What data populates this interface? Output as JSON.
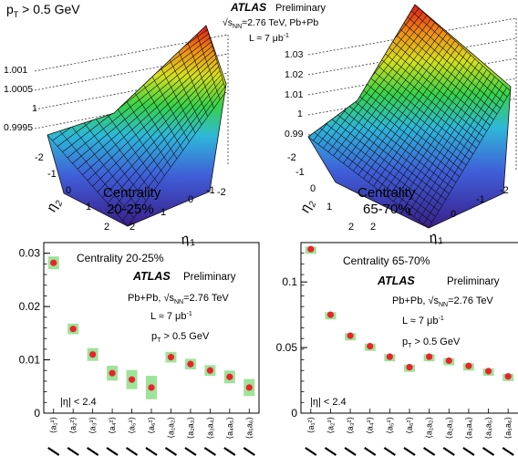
{
  "header": {
    "pt_cut": "p",
    "pt_sub": "T",
    "pt_rest": " > 0.5 GeV",
    "atlas": "ATLAS",
    "preliminary": "Preliminary",
    "energy_pre": "s",
    "energy_sub": "NN",
    "energy_rest": "=2.76 TeV, Pb+Pb",
    "lumi_pre": "L ≈ 7 μb",
    "lumi_sup": "-1"
  },
  "chart_data": [
    {
      "type": "surface",
      "panel": "top-left",
      "zlim": [
        0.999,
        1.0015
      ],
      "z_ticks": [
        "1.001",
        "1.0005",
        "1",
        "0.9995"
      ],
      "axis_ticks": [
        "-2",
        "-1",
        "0",
        "1",
        "2"
      ],
      "xlabel": "η",
      "xlabel_sub": "1",
      "ylabel": "η",
      "ylabel_sub": "2",
      "annotation_1": "Centrality",
      "annotation_2": "20-25%"
    },
    {
      "type": "surface",
      "panel": "top-right",
      "zlim": [
        0.985,
        1.035
      ],
      "z_ticks": [
        "1.03",
        "1.02",
        "1.01",
        "1",
        "0.99"
      ],
      "axis_ticks": [
        "-2",
        "-1",
        "0",
        "1",
        "2"
      ],
      "xlabel": "η",
      "xlabel_sub": "1",
      "ylabel": "η",
      "ylabel_sub": "2",
      "annotation_1": "Centrality",
      "annotation_2": "65-70%"
    },
    {
      "type": "scatter",
      "panel": "bottom-left",
      "title": "Centrality 20-25%",
      "atlas": "ATLAS",
      "preliminary": "Preliminary",
      "line1": "Pb+Pb, ",
      "line1_s": "s",
      "line1_sub": "NN",
      "line1_rest": "=2.76 TeV",
      "line2": "L ≈ 7 μb",
      "line2_sup": "-1",
      "line3": "p",
      "line3_sub": "T",
      "line3_rest": " > 0.5 GeV",
      "eta_cut": "|η| < 2.4",
      "ylim": [
        0,
        0.032
      ],
      "y_ticks": [
        "0",
        "0.01",
        "0.02",
        "0.03"
      ],
      "x_labels": [
        "⟨a₁²⟩",
        "⟨a₂²⟩",
        "⟨a₃²⟩",
        "⟨a₄²⟩",
        "⟨a₅²⟩",
        "⟨a₆²⟩",
        "⟨a₁a₂⟩",
        "⟨a₂a₃⟩",
        "⟨a₃a₄⟩",
        "⟨a₄a₅⟩",
        "⟨a₅a₆⟩"
      ],
      "values": [
        0.0282,
        0.0158,
        0.011,
        0.0075,
        0.0063,
        0.0048,
        0.0105,
        0.0092,
        0.008,
        0.0068,
        0.0048
      ],
      "sys_err": [
        0.0012,
        0.001,
        0.0012,
        0.0014,
        0.0018,
        0.0022,
        0.001,
        0.001,
        0.001,
        0.0012,
        0.0016
      ]
    },
    {
      "type": "scatter",
      "panel": "bottom-right",
      "title": "Centrality 65-70%",
      "atlas": "ATLAS",
      "preliminary": "Preliminary",
      "line1": "Pb+Pb, ",
      "line1_s": "s",
      "line1_sub": "NN",
      "line1_rest": "=2.76 TeV",
      "line2": "L ≈ 7 μb",
      "line2_sup": "-1",
      "line3": "p",
      "line3_sub": "T",
      "line3_rest": " > 0.5 GeV",
      "eta_cut": "|η| < 2.4",
      "ylim": [
        0,
        0.13
      ],
      "y_ticks": [
        "0",
        "0.05",
        "0.1"
      ],
      "x_labels": [
        "⟨a₁²⟩",
        "⟨a₂²⟩",
        "⟨a₃²⟩",
        "⟨a₄²⟩",
        "⟨a₅²⟩",
        "⟨a₆²⟩",
        "⟨a₁a₂⟩",
        "⟨a₂a₃⟩",
        "⟨a₃a₄⟩",
        "⟨a₄a₅⟩",
        "⟨a₅a₆⟩"
      ],
      "values": [
        0.125,
        0.075,
        0.059,
        0.051,
        0.043,
        0.035,
        0.043,
        0.04,
        0.036,
        0.032,
        0.028
      ],
      "sys_err": [
        0.002,
        0.002,
        0.002,
        0.002,
        0.002,
        0.002,
        0.002,
        0.002,
        0.002,
        0.002,
        0.002
      ]
    }
  ],
  "colors": {
    "marker": "#e8242a",
    "sys_box": "#9fe39a",
    "grid": "#222222"
  }
}
